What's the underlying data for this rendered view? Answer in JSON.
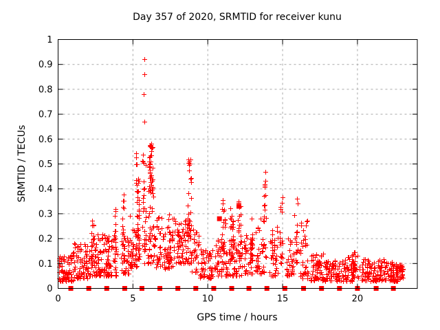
{
  "chart_data": {
    "type": "scatter",
    "title": "Day 357 of 2020, SRMTID for receiver kunu",
    "xlabel": "GPS time / hours",
    "ylabel": "SRMTID / TECUs",
    "xlim": [
      0,
      24
    ],
    "ylim": [
      0,
      1
    ],
    "xticks": [
      0,
      5,
      10,
      15,
      20
    ],
    "yticks": [
      0,
      0.1,
      0.2,
      0.3,
      0.4,
      0.5,
      0.6,
      0.7,
      0.8,
      0.9,
      1
    ],
    "grid": true,
    "legend": "none",
    "marker": "plus",
    "marker_color": "#ff0000",
    "grid_color": "#a8a8a8",
    "axis_color": "#000000",
    "background": "#ffffff",
    "outlier_points": [
      [
        5.75,
        0.92
      ],
      [
        5.76,
        0.86
      ],
      [
        5.74,
        0.78
      ],
      [
        5.77,
        0.67
      ]
    ],
    "square_markers": {
      "baseline_y": 0,
      "baseline_times": [
        0.85,
        2.05,
        3.25,
        4.45,
        5.6,
        6.8,
        8.0,
        9.2,
        10.4,
        11.6,
        12.75,
        13.95,
        15.15,
        16.4,
        17.6,
        18.8,
        20.0,
        21.25,
        22.4
      ],
      "elevated_points": [
        [
          10.78,
          0.28
        ],
        [
          12.08,
          0.33
        ]
      ]
    },
    "seed": 20357,
    "clusters": [
      {
        "c": 0.5,
        "w": 0.5,
        "n": 70,
        "lo": 0.03,
        "hi": 0.14,
        "pow": 1.8
      },
      {
        "c": 1.5,
        "w": 0.5,
        "n": 70,
        "lo": 0.04,
        "hi": 0.18,
        "pow": 1.8
      },
      {
        "c": 2.3,
        "w": 0.12,
        "n": 20,
        "lo": 0.1,
        "hi": 0.29,
        "pow": 1.2
      },
      {
        "c": 2.4,
        "w": 0.45,
        "n": 45,
        "lo": 0.05,
        "hi": 0.18,
        "pow": 1.6
      },
      {
        "c": 3.0,
        "w": 0.4,
        "n": 45,
        "lo": 0.05,
        "hi": 0.22,
        "pow": 1.6
      },
      {
        "c": 3.6,
        "w": 0.4,
        "n": 40,
        "lo": 0.05,
        "hi": 0.2,
        "pow": 1.7
      },
      {
        "c": 3.8,
        "w": 0.1,
        "n": 14,
        "lo": 0.1,
        "hi": 0.33,
        "pow": 1.3
      },
      {
        "c": 4.32,
        "w": 0.1,
        "n": 16,
        "lo": 0.12,
        "hi": 0.38,
        "pow": 1.2
      },
      {
        "c": 4.5,
        "w": 0.3,
        "n": 30,
        "lo": 0.06,
        "hi": 0.22,
        "pow": 1.6
      },
      {
        "c": 4.8,
        "w": 0.2,
        "n": 22,
        "lo": 0.08,
        "hi": 0.3,
        "pow": 1.5
      },
      {
        "c": 5.2,
        "w": 0.25,
        "n": 30,
        "lo": 0.08,
        "hi": 0.25,
        "pow": 1.5
      },
      {
        "c": 5.28,
        "w": 0.12,
        "n": 35,
        "lo": 0.15,
        "hi": 0.56,
        "pow": 1.1
      },
      {
        "c": 5.75,
        "w": 0.12,
        "n": 30,
        "lo": 0.1,
        "hi": 0.55,
        "pow": 1.3
      },
      {
        "c": 6.2,
        "w": 0.15,
        "n": 40,
        "lo": 0.38,
        "hi": 0.59,
        "pow": 1.0
      },
      {
        "c": 6.2,
        "w": 0.2,
        "n": 35,
        "lo": 0.1,
        "hi": 0.4,
        "pow": 1.3
      },
      {
        "c": 6.7,
        "w": 0.25,
        "n": 28,
        "lo": 0.08,
        "hi": 0.3,
        "pow": 1.5
      },
      {
        "c": 7.3,
        "w": 0.35,
        "n": 40,
        "lo": 0.08,
        "hi": 0.25,
        "pow": 1.6
      },
      {
        "c": 7.5,
        "w": 0.15,
        "n": 15,
        "lo": 0.1,
        "hi": 0.3,
        "pow": 1.4
      },
      {
        "c": 8.0,
        "w": 0.3,
        "n": 40,
        "lo": 0.1,
        "hi": 0.28,
        "pow": 1.4
      },
      {
        "c": 8.6,
        "w": 0.3,
        "n": 35,
        "lo": 0.1,
        "hi": 0.3,
        "pow": 1.5
      },
      {
        "c": 8.78,
        "w": 0.12,
        "n": 30,
        "lo": 0.2,
        "hi": 0.53,
        "pow": 1.1
      },
      {
        "c": 9.1,
        "w": 0.3,
        "n": 30,
        "lo": 0.06,
        "hi": 0.25,
        "pow": 1.6
      },
      {
        "c": 9.9,
        "w": 0.4,
        "n": 50,
        "lo": 0.04,
        "hi": 0.16,
        "pow": 1.6
      },
      {
        "c": 10.75,
        "w": 0.3,
        "n": 40,
        "lo": 0.05,
        "hi": 0.2,
        "pow": 1.5
      },
      {
        "c": 11.05,
        "w": 0.12,
        "n": 22,
        "lo": 0.15,
        "hi": 0.4,
        "pow": 1.2
      },
      {
        "c": 11.4,
        "w": 0.3,
        "n": 35,
        "lo": 0.05,
        "hi": 0.2,
        "pow": 1.6
      },
      {
        "c": 11.6,
        "w": 0.1,
        "n": 18,
        "lo": 0.12,
        "hi": 0.35,
        "pow": 1.2
      },
      {
        "c": 12.0,
        "w": 0.3,
        "n": 35,
        "lo": 0.05,
        "hi": 0.2,
        "pow": 1.6
      },
      {
        "c": 12.1,
        "w": 0.1,
        "n": 20,
        "lo": 0.12,
        "hi": 0.35,
        "pow": 1.2
      },
      {
        "c": 12.7,
        "w": 0.3,
        "n": 35,
        "lo": 0.06,
        "hi": 0.22,
        "pow": 1.6
      },
      {
        "c": 12.9,
        "w": 0.1,
        "n": 15,
        "lo": 0.1,
        "hi": 0.28,
        "pow": 1.2
      },
      {
        "c": 13.5,
        "w": 0.3,
        "n": 35,
        "lo": 0.06,
        "hi": 0.28,
        "pow": 1.6
      },
      {
        "c": 13.8,
        "w": 0.12,
        "n": 20,
        "lo": 0.12,
        "hi": 0.47,
        "pow": 1.2
      },
      {
        "c": 14.4,
        "w": 0.3,
        "n": 38,
        "lo": 0.05,
        "hi": 0.25,
        "pow": 1.7
      },
      {
        "c": 14.9,
        "w": 0.1,
        "n": 18,
        "lo": 0.1,
        "hi": 0.37,
        "pow": 1.3
      },
      {
        "c": 15.5,
        "w": 0.25,
        "n": 32,
        "lo": 0.05,
        "hi": 0.2,
        "pow": 1.6
      },
      {
        "c": 15.9,
        "w": 0.1,
        "n": 18,
        "lo": 0.1,
        "hi": 0.39,
        "pow": 1.3
      },
      {
        "c": 16.4,
        "w": 0.3,
        "n": 35,
        "lo": 0.04,
        "hi": 0.28,
        "pow": 2.0
      },
      {
        "c": 17.3,
        "w": 0.45,
        "n": 55,
        "lo": 0.03,
        "hi": 0.14,
        "pow": 1.6
      },
      {
        "c": 18.3,
        "w": 0.55,
        "n": 60,
        "lo": 0.03,
        "hi": 0.12,
        "pow": 1.6
      },
      {
        "c": 19.3,
        "w": 0.45,
        "n": 50,
        "lo": 0.03,
        "hi": 0.13,
        "pow": 1.6
      },
      {
        "c": 19.9,
        "w": 0.25,
        "n": 30,
        "lo": 0.04,
        "hi": 0.15,
        "pow": 1.4
      },
      {
        "c": 20.6,
        "w": 0.35,
        "n": 45,
        "lo": 0.03,
        "hi": 0.12,
        "pow": 1.6
      },
      {
        "c": 21.4,
        "w": 0.4,
        "n": 45,
        "lo": 0.03,
        "hi": 0.12,
        "pow": 1.5
      },
      {
        "c": 22.1,
        "w": 0.35,
        "n": 45,
        "lo": 0.03,
        "hi": 0.11,
        "pow": 1.5
      },
      {
        "c": 22.75,
        "w": 0.3,
        "n": 55,
        "lo": 0.03,
        "hi": 0.1,
        "pow": 1.3
      }
    ]
  }
}
